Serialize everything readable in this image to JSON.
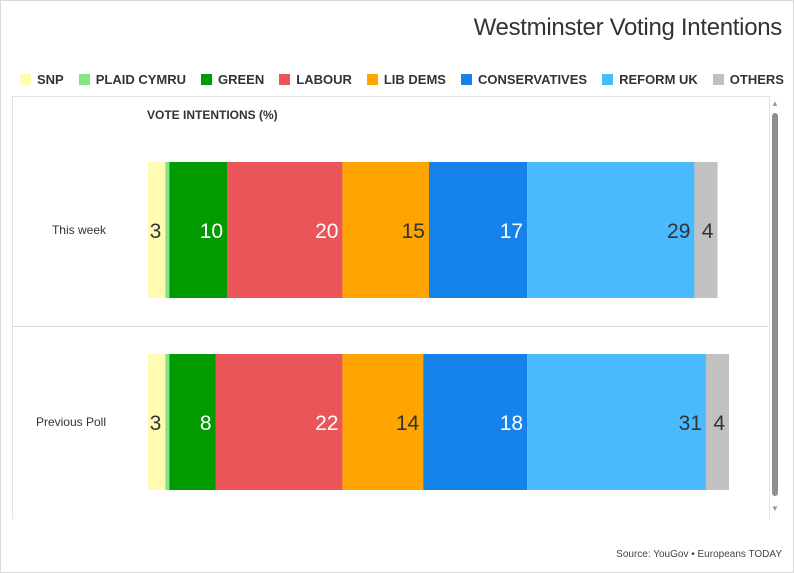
{
  "title": "Westminster Voting Intentions",
  "legend": [
    {
      "label": "SNP",
      "color": "#fffbb3"
    },
    {
      "label": "PLAID CYMRU",
      "color": "#82e58c"
    },
    {
      "label": "GREEN",
      "color": "#019a00"
    },
    {
      "label": "LABOUR",
      "color": "#ea5559"
    },
    {
      "label": "LIB DEMS",
      "color": "#ffa400"
    },
    {
      "label": "CONSERVATIVES",
      "color": "#1583e9"
    },
    {
      "label": "REFORM UK",
      "color": "#4bb9fd"
    },
    {
      "label": "OTHERS",
      "color": "#c1c1c1"
    }
  ],
  "axis_title": "VOTE INTENTIONS (%)",
  "source": "Source: YouGov • Europeans TODAY",
  "chart_data": {
    "type": "bar",
    "orientation": "horizontal",
    "stacked": true,
    "title": "Westminster Voting Intentions",
    "xlabel": "VOTE INTENTIONS (%)",
    "categories": [
      "This week",
      "Previous Poll"
    ],
    "series": [
      {
        "name": "SNP",
        "color": "#fffbb3",
        "values": [
          3,
          3
        ]
      },
      {
        "name": "PLAID CYMRU",
        "color": "#82e58c",
        "values": [
          0.7,
          0.7
        ]
      },
      {
        "name": "GREEN",
        "color": "#019a00",
        "values": [
          10,
          8
        ]
      },
      {
        "name": "LABOUR",
        "color": "#ea5559",
        "values": [
          20,
          22
        ]
      },
      {
        "name": "LIB DEMS",
        "color": "#ffa400",
        "values": [
          15,
          14
        ]
      },
      {
        "name": "CONSERVATIVES",
        "color": "#1583e9",
        "values": [
          17,
          18
        ]
      },
      {
        "name": "REFORM UK",
        "color": "#4bb9fd",
        "values": [
          29,
          31
        ]
      },
      {
        "name": "OTHERS",
        "color": "#c1c1c1",
        "values": [
          4,
          4
        ]
      }
    ],
    "data_labels": [
      [
        "3",
        "",
        "10",
        "20",
        "15",
        "17",
        "29",
        "4"
      ],
      [
        "3",
        "",
        "8",
        "22",
        "14",
        "18",
        "31",
        "4"
      ]
    ],
    "legend_position": "top",
    "grid": false
  }
}
